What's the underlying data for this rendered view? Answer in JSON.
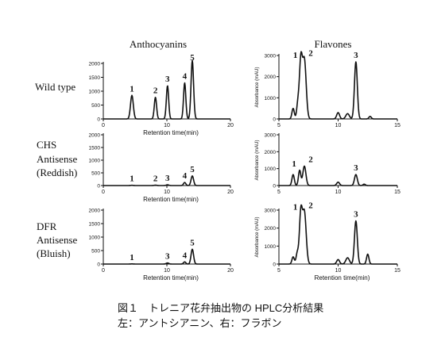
{
  "column_titles": [
    "Anthocyanins",
    "Flavones"
  ],
  "row_labels": [
    [
      "Wild type"
    ],
    [
      "CHS",
      "Antisense",
      "(Reddish)"
    ],
    [
      "DFR",
      "Antisense",
      "(Bluish)"
    ]
  ],
  "caption": {
    "line1": "図１　トレニア花弁抽出物の HPLC分析結果",
    "line2": "左：アントシアニン、右：フラボン"
  },
  "chart_data": [
    {
      "type": "line",
      "id": "anthocyanins-wild-type",
      "xlabel": "Retention time(min)",
      "ylabel": "",
      "xlim": [
        0,
        20
      ],
      "ylim": [
        0,
        2000
      ],
      "xticks": [
        0,
        10,
        20
      ],
      "yticks": [
        0,
        500,
        1000,
        1500,
        2000
      ],
      "peaks": [
        {
          "label": "1",
          "x": 4.5,
          "y": 850,
          "w": 0.22
        },
        {
          "label": "2",
          "x": 8.2,
          "y": 780,
          "w": 0.18
        },
        {
          "label": "3",
          "x": 10.1,
          "y": 1200,
          "w": 0.18
        },
        {
          "label": "4",
          "x": 12.8,
          "y": 1300,
          "w": 0.18
        },
        {
          "label": "5",
          "x": 14.0,
          "y": 2100,
          "w": 0.2
        }
      ]
    },
    {
      "type": "line",
      "id": "flavones-wild-type",
      "xlabel": "",
      "ylabel": "Absorbance (mAU)",
      "xlim": [
        5,
        15
      ],
      "ylim": [
        0,
        3000
      ],
      "xticks": [
        5,
        10,
        15
      ],
      "yticks": [
        0,
        1000,
        2000,
        3000
      ],
      "peaks": [
        {
          "label": "",
          "x": 6.2,
          "y": 500,
          "w": 0.1
        },
        {
          "label": "",
          "x": 6.6,
          "y": 700,
          "w": 0.1
        },
        {
          "label": "1",
          "x": 6.85,
          "y": 2700,
          "w": 0.12
        },
        {
          "label": "2",
          "x": 7.15,
          "y": 2800,
          "w": 0.15
        },
        {
          "label": "",
          "x": 10.0,
          "y": 300,
          "w": 0.12
        },
        {
          "label": "",
          "x": 10.8,
          "y": 250,
          "w": 0.15
        },
        {
          "label": "3",
          "x": 11.5,
          "y": 2700,
          "w": 0.12
        },
        {
          "label": "",
          "x": 12.7,
          "y": 120,
          "w": 0.1
        }
      ]
    },
    {
      "type": "line",
      "id": "anthocyanins-chs-antisense",
      "xlabel": "Retention time(min)",
      "ylabel": "",
      "xlim": [
        0,
        20
      ],
      "ylim": [
        0,
        2000
      ],
      "xticks": [
        0,
        10,
        20
      ],
      "yticks": [
        0,
        500,
        1000,
        1500,
        2000
      ],
      "peaks": [
        {
          "label": "1",
          "x": 4.5,
          "y": 10,
          "w": 0.2
        },
        {
          "label": "2",
          "x": 8.2,
          "y": 15,
          "w": 0.2
        },
        {
          "label": "3",
          "x": 10.1,
          "y": 30,
          "w": 0.2
        },
        {
          "label": "4",
          "x": 12.8,
          "y": 120,
          "w": 0.18
        },
        {
          "label": "5",
          "x": 14.0,
          "y": 380,
          "w": 0.2
        }
      ]
    },
    {
      "type": "line",
      "id": "flavones-chs-antisense",
      "xlabel": "",
      "ylabel": "Absorbance (mAU)",
      "xlim": [
        5,
        15
      ],
      "ylim": [
        0,
        3000
      ],
      "xticks": [
        5,
        10,
        15
      ],
      "yticks": [
        0,
        1000,
        2000,
        3000
      ],
      "peaks": [
        {
          "label": "",
          "x": 6.2,
          "y": 650,
          "w": 0.1
        },
        {
          "label": "1",
          "x": 6.75,
          "y": 900,
          "w": 0.1
        },
        {
          "label": "2",
          "x": 7.15,
          "y": 1150,
          "w": 0.13
        },
        {
          "label": "",
          "x": 10.0,
          "y": 200,
          "w": 0.12
        },
        {
          "label": "3",
          "x": 11.5,
          "y": 650,
          "w": 0.12
        },
        {
          "label": "",
          "x": 12.2,
          "y": 80,
          "w": 0.1
        }
      ]
    },
    {
      "type": "line",
      "id": "anthocyanins-dfr-antisense",
      "xlabel": "Retention time(min)",
      "ylabel": "",
      "xlim": [
        0,
        20
      ],
      "ylim": [
        0,
        2000
      ],
      "xticks": [
        0,
        10,
        20
      ],
      "yticks": [
        0,
        500,
        1000,
        1500,
        2000
      ],
      "peaks": [
        {
          "label": "1",
          "x": 4.5,
          "y": 5,
          "w": 0.2
        },
        {
          "label": "3",
          "x": 10.1,
          "y": 40,
          "w": 0.2
        },
        {
          "label": "4",
          "x": 12.8,
          "y": 80,
          "w": 0.18
        },
        {
          "label": "5",
          "x": 14.0,
          "y": 550,
          "w": 0.2
        }
      ]
    },
    {
      "type": "line",
      "id": "flavones-dfr-antisense",
      "xlabel": "Retention time(min)",
      "ylabel": "Absorbance (mAU)",
      "xlim": [
        5,
        15
      ],
      "ylim": [
        0,
        3000
      ],
      "xticks": [
        5,
        10,
        15
      ],
      "yticks": [
        0,
        1000,
        2000,
        3000
      ],
      "peaks": [
        {
          "label": "",
          "x": 6.2,
          "y": 400,
          "w": 0.1
        },
        {
          "label": "",
          "x": 6.55,
          "y": 600,
          "w": 0.1
        },
        {
          "label": "1",
          "x": 6.85,
          "y": 2800,
          "w": 0.12
        },
        {
          "label": "2",
          "x": 7.15,
          "y": 2900,
          "w": 0.15
        },
        {
          "label": "",
          "x": 10.0,
          "y": 250,
          "w": 0.12
        },
        {
          "label": "",
          "x": 10.8,
          "y": 350,
          "w": 0.15
        },
        {
          "label": "3",
          "x": 11.5,
          "y": 2400,
          "w": 0.12
        },
        {
          "label": "",
          "x": 12.5,
          "y": 550,
          "w": 0.1
        }
      ]
    }
  ]
}
